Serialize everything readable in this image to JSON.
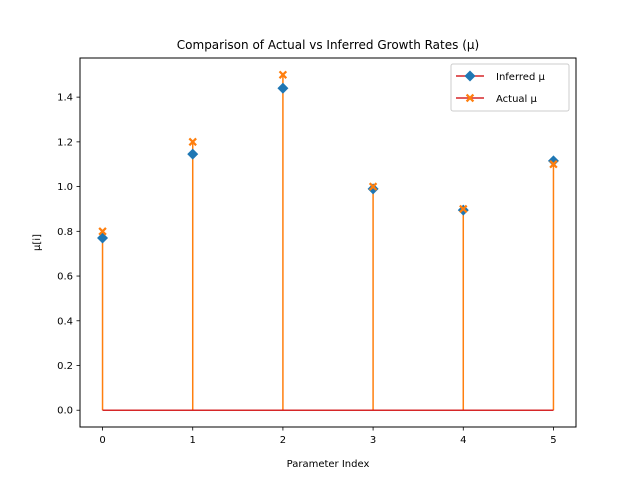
{
  "chart_data": {
    "type": "stem",
    "title": "Comparison of Actual vs Inferred Growth Rates (μ)",
    "xlabel": "Parameter Index",
    "ylabel": "μ[i]",
    "x": [
      0,
      1,
      2,
      3,
      4,
      5
    ],
    "xlim": [
      -0.25,
      5.25
    ],
    "ylim": [
      -0.075,
      1.575
    ],
    "x_ticks": [
      "0",
      "1",
      "2",
      "3",
      "4",
      "5"
    ],
    "y_ticks": [
      "0.0",
      "0.2",
      "0.4",
      "0.6",
      "0.8",
      "1.0",
      "1.2",
      "1.4"
    ],
    "grid": false,
    "legend_position": "top-right",
    "series": [
      {
        "name": "Inferred μ",
        "values": [
          0.77,
          1.145,
          1.44,
          0.99,
          0.895,
          1.115
        ],
        "marker": "diamond",
        "color": "#1f77b4"
      },
      {
        "name": "Actual μ",
        "values": [
          0.8,
          1.2,
          1.5,
          1.0,
          0.9,
          1.1
        ],
        "marker": "x",
        "color": "#ff7f0e"
      }
    ],
    "stem_color": "#ff7f0e",
    "baseline_color": "#d62728",
    "baseline_value": 0
  }
}
